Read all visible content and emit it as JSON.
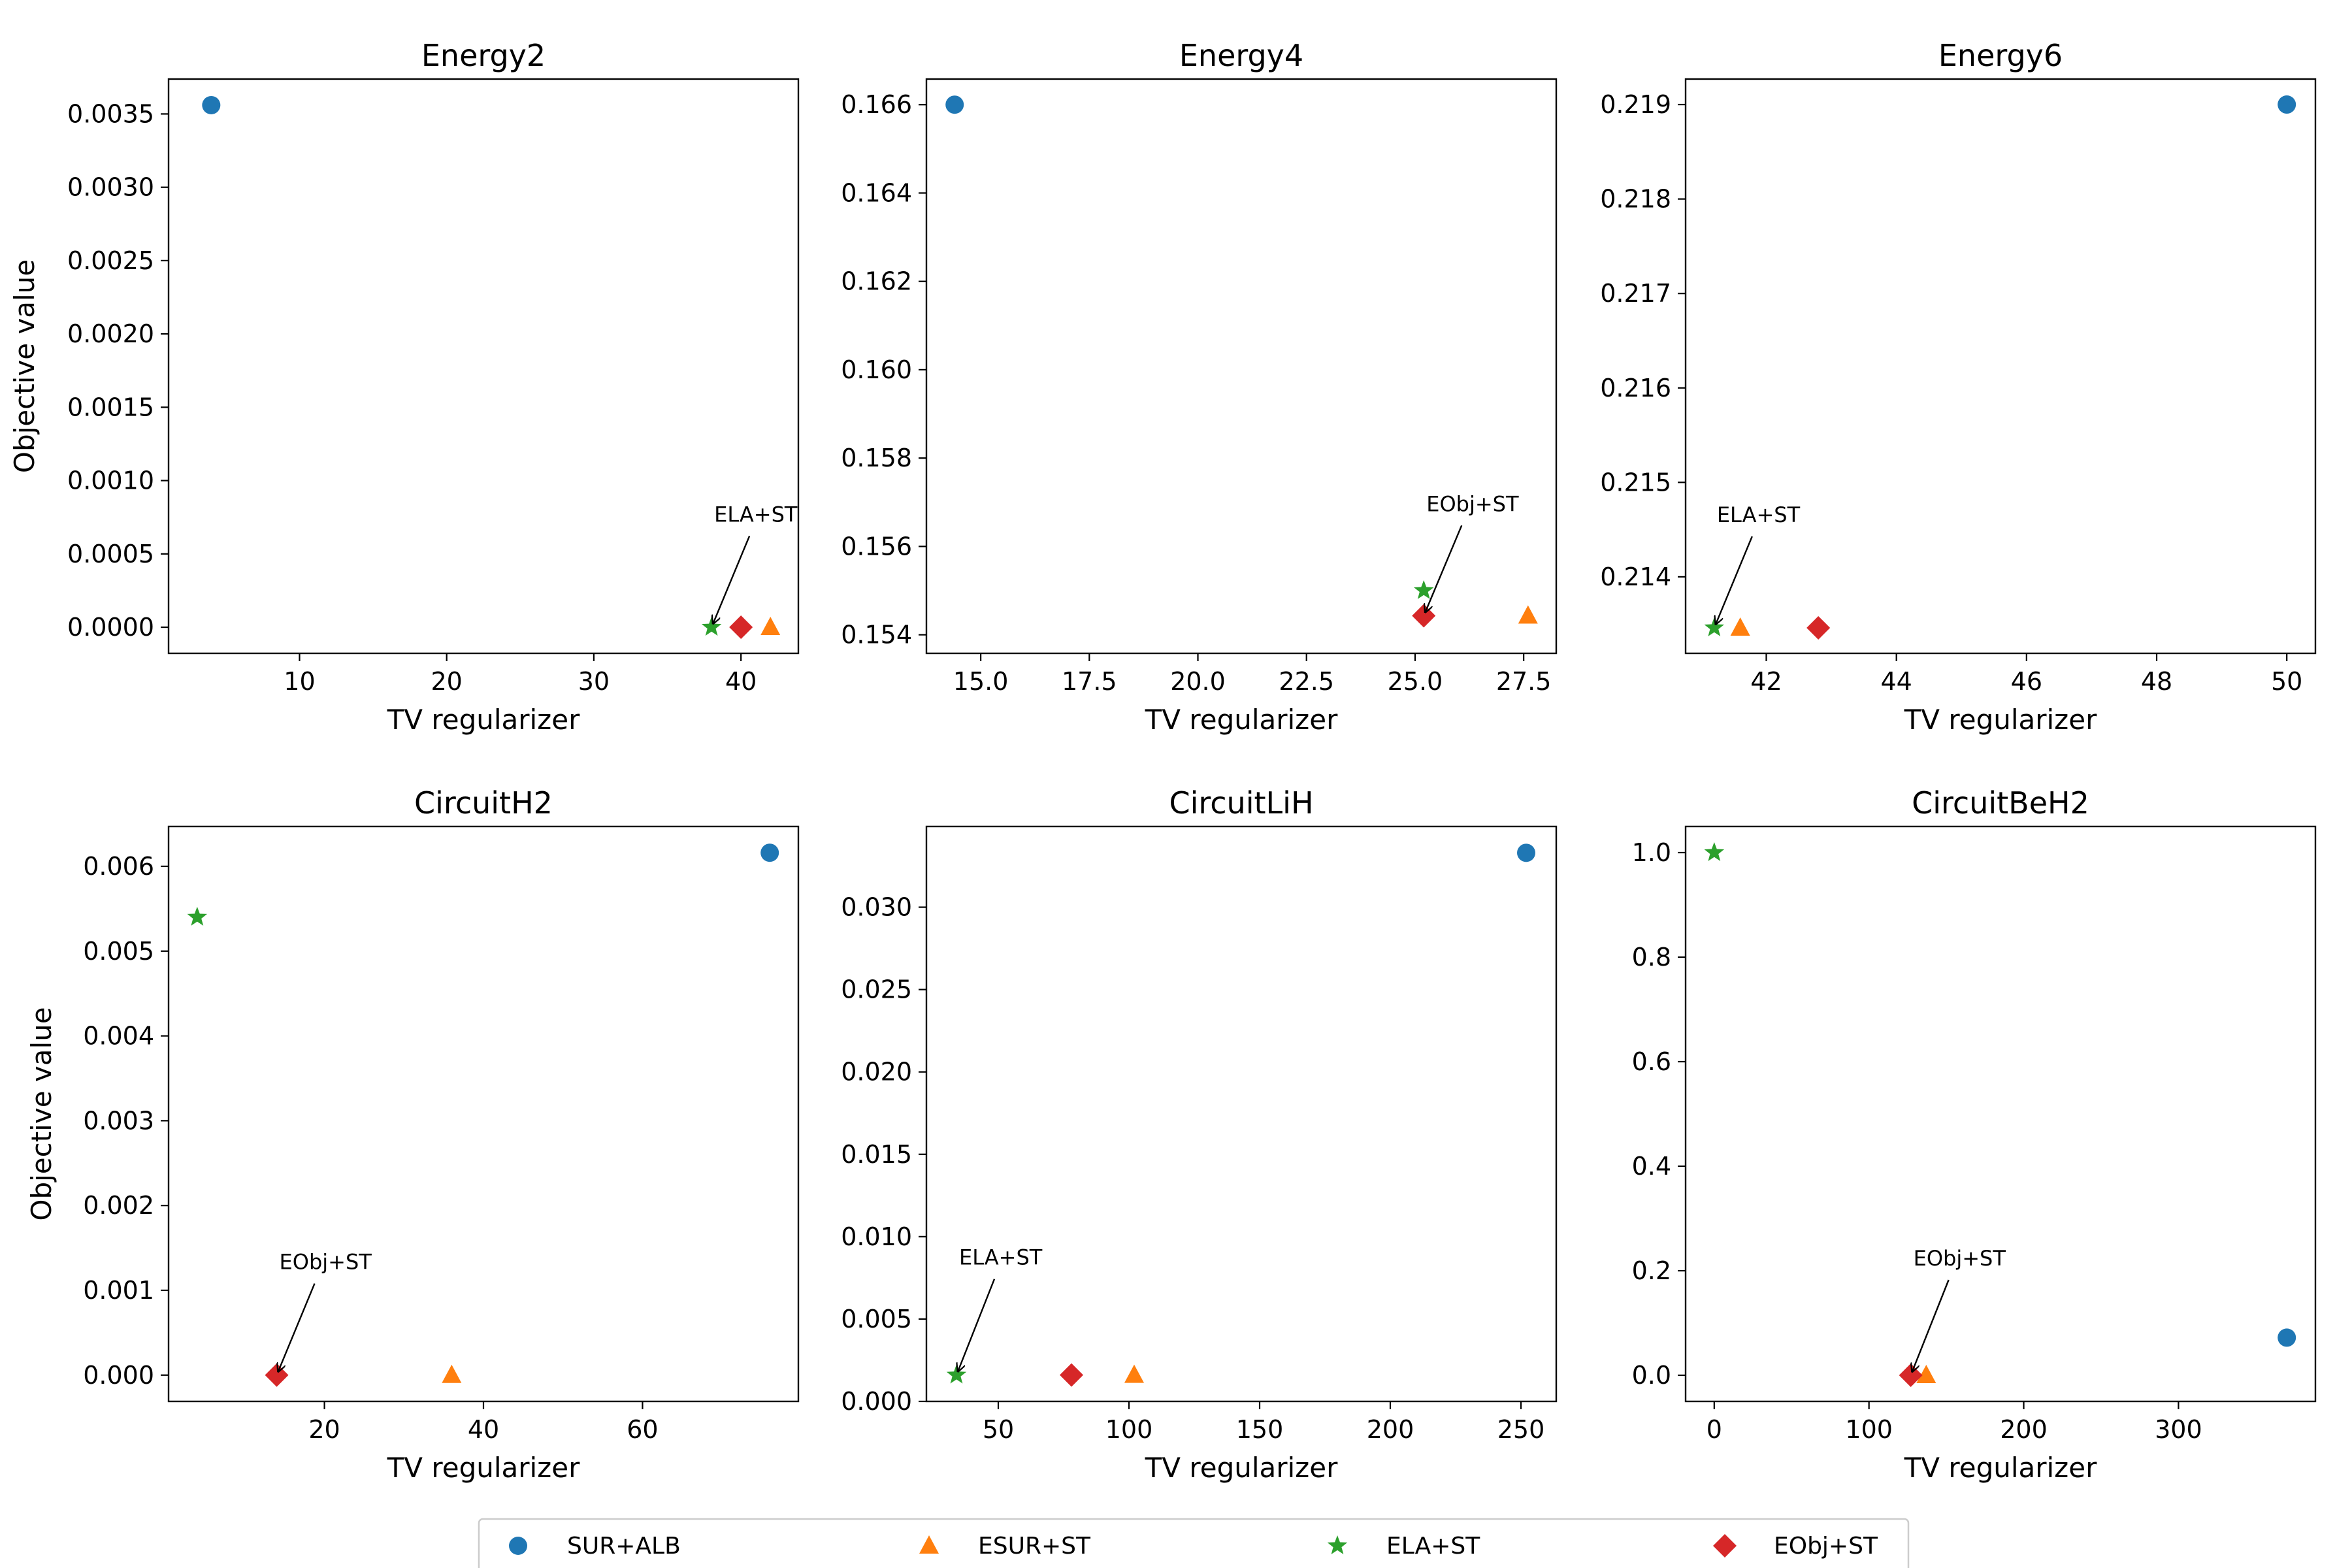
{
  "legend": {
    "placement": "bottom-center",
    "items": [
      {
        "label": "SUR+ALB",
        "marker": "circle",
        "color": "#1f77b4"
      },
      {
        "label": "ESUR+ST",
        "marker": "triangle",
        "color": "#ff7f0e"
      },
      {
        "label": "ELA+ST",
        "marker": "star",
        "color": "#2ca02c"
      },
      {
        "label": "EObj+ST",
        "marker": "diamond",
        "color": "#d62728"
      }
    ]
  },
  "chart_data": [
    {
      "type": "scatter",
      "title": "Energy2",
      "xlabel": "TV regularizer",
      "ylabel": "Objective value",
      "xlim": [
        1.1,
        43.9
      ],
      "ylim": [
        -0.000178,
        0.003738
      ],
      "xticks": [
        10,
        20,
        30,
        40
      ],
      "xtick_labels": [
        "10",
        "20",
        "30",
        "40"
      ],
      "yticks": [
        0,
        0.0005,
        0.001,
        0.0015,
        0.002,
        0.0025,
        0.003,
        0.0035
      ],
      "ytick_labels": [
        "0.0000",
        "0.0005",
        "0.0010",
        "0.0015",
        "0.0020",
        "0.0025",
        "0.0030",
        "0.0035"
      ],
      "series": [
        {
          "name": "SUR+ALB",
          "x": 4,
          "y": 0.00356
        },
        {
          "name": "ESUR+ST",
          "x": 42,
          "y": 0.0
        },
        {
          "name": "ELA+ST",
          "x": 38,
          "y": 0.0
        },
        {
          "name": "EObj+ST",
          "x": 40,
          "y": 0.0
        }
      ],
      "annotation": {
        "text": "ELA+ST",
        "x": 38,
        "y": 0.0,
        "text_x": 38.0,
        "text_y": 0.00072
      }
    },
    {
      "type": "scatter",
      "title": "Energy4",
      "xlabel": "TV regularizer",
      "ylabel": "",
      "xlim": [
        13.75,
        28.25
      ],
      "ylim": [
        0.15358,
        0.16658
      ],
      "xticks": [
        15,
        17.5,
        20,
        22.5,
        25,
        27.5
      ],
      "xtick_labels": [
        "15.0",
        "17.5",
        "20.0",
        "22.5",
        "25.0",
        "27.5"
      ],
      "yticks": [
        0.154,
        0.156,
        0.158,
        0.16,
        0.162,
        0.164,
        0.166
      ],
      "ytick_labels": [
        "0.154",
        "0.156",
        "0.158",
        "0.160",
        "0.162",
        "0.164",
        "0.166"
      ],
      "series": [
        {
          "name": "SUR+ALB",
          "x": 14.4,
          "y": 0.166
        },
        {
          "name": "ESUR+ST",
          "x": 27.6,
          "y": 0.15443
        },
        {
          "name": "ELA+ST",
          "x": 25.2,
          "y": 0.155
        },
        {
          "name": "EObj+ST",
          "x": 25.2,
          "y": 0.15443
        }
      ],
      "annotation": {
        "text": "EObj+ST",
        "x": 25.2,
        "y": 0.15443,
        "text_x": 25.2,
        "text_y": 0.1568
      }
    },
    {
      "type": "scatter",
      "title": "Energy6",
      "xlabel": "TV regularizer",
      "ylabel": "",
      "xlim": [
        40.76,
        50.44
      ],
      "ylim": [
        0.21319,
        0.21927
      ],
      "xticks": [
        42,
        44,
        46,
        48,
        50
      ],
      "xtick_labels": [
        "42",
        "44",
        "46",
        "48",
        "50"
      ],
      "yticks": [
        0.214,
        0.215,
        0.216,
        0.217,
        0.218,
        0.219
      ],
      "ytick_labels": [
        "0.214",
        "0.215",
        "0.216",
        "0.217",
        "0.218",
        "0.219"
      ],
      "series": [
        {
          "name": "SUR+ALB",
          "x": 50,
          "y": 0.219
        },
        {
          "name": "ESUR+ST",
          "x": 41.6,
          "y": 0.21346
        },
        {
          "name": "ELA+ST",
          "x": 41.2,
          "y": 0.21346
        },
        {
          "name": "EObj+ST",
          "x": 42.8,
          "y": 0.21346
        }
      ],
      "annotation": {
        "text": "ELA+ST",
        "x": 41.2,
        "y": 0.21346,
        "text_x": 41.2,
        "text_y": 0.21458
      }
    },
    {
      "type": "scatter",
      "title": "CircuitH2",
      "xlabel": "TV regularizer",
      "ylabel": "Objective value",
      "xlim": [
        0.4,
        79.6
      ],
      "ylim": [
        -0.00031,
        0.00647
      ],
      "xticks": [
        20,
        40,
        60
      ],
      "xtick_labels": [
        "20",
        "40",
        "60"
      ],
      "yticks": [
        0,
        0.001,
        0.002,
        0.003,
        0.004,
        0.005,
        0.006
      ],
      "ytick_labels": [
        "0.000",
        "0.001",
        "0.002",
        "0.003",
        "0.004",
        "0.005",
        "0.006"
      ],
      "series": [
        {
          "name": "SUR+ALB",
          "x": 76,
          "y": 0.00616
        },
        {
          "name": "ESUR+ST",
          "x": 36,
          "y": 0.0
        },
        {
          "name": "ELA+ST",
          "x": 4,
          "y": 0.0054
        },
        {
          "name": "EObj+ST",
          "x": 14,
          "y": 0.0
        }
      ],
      "annotation": {
        "text": "EObj+ST",
        "x": 14,
        "y": 0.0,
        "text_x": 14.0,
        "text_y": 0.00125
      }
    },
    {
      "type": "scatter",
      "title": "CircuitLiH",
      "xlabel": "TV regularizer",
      "ylabel": "",
      "xlim": [
        22.5,
        263.5
      ],
      "ylim": [
        0.0,
        0.0349
      ],
      "xticks": [
        50,
        100,
        150,
        200,
        250
      ],
      "xtick_labels": [
        "50",
        "100",
        "150",
        "200",
        "250"
      ],
      "yticks": [
        0,
        0.005,
        0.01,
        0.015,
        0.02,
        0.025,
        0.03
      ],
      "ytick_labels": [
        "0.000",
        "0.005",
        "0.010",
        "0.015",
        "0.020",
        "0.025",
        "0.030"
      ],
      "series": [
        {
          "name": "SUR+ALB",
          "x": 252,
          "y": 0.0333
        },
        {
          "name": "ESUR+ST",
          "x": 102,
          "y": 0.0016
        },
        {
          "name": "ELA+ST",
          "x": 34,
          "y": 0.0016
        },
        {
          "name": "EObj+ST",
          "x": 78,
          "y": 0.0016
        }
      ],
      "annotation": {
        "text": "ELA+ST",
        "x": 34,
        "y": 0.0016,
        "text_x": 34.0,
        "text_y": 0.0083
      }
    },
    {
      "type": "scatter",
      "title": "CircuitBeH2",
      "xlabel": "TV regularizer",
      "ylabel": "",
      "xlim": [
        -18.5,
        388.5
      ],
      "ylim": [
        -0.05,
        1.05
      ],
      "xticks": [
        0,
        100,
        200,
        300
      ],
      "xtick_labels": [
        "0",
        "100",
        "200",
        "300"
      ],
      "yticks": [
        0,
        0.2,
        0.4,
        0.6,
        0.8,
        1.0
      ],
      "ytick_labels": [
        "0.0",
        "0.2",
        "0.4",
        "0.6",
        "0.8",
        "1.0"
      ],
      "series": [
        {
          "name": "SUR+ALB",
          "x": 370,
          "y": 0.072
        },
        {
          "name": "ESUR+ST",
          "x": 137,
          "y": 0.0
        },
        {
          "name": "ELA+ST",
          "x": 0,
          "y": 1.0
        },
        {
          "name": "EObj+ST",
          "x": 127,
          "y": 0.0
        }
      ],
      "annotation": {
        "text": "EObj+ST",
        "x": 127,
        "y": 0.0,
        "text_x": 127.0,
        "text_y": 0.21
      }
    }
  ]
}
